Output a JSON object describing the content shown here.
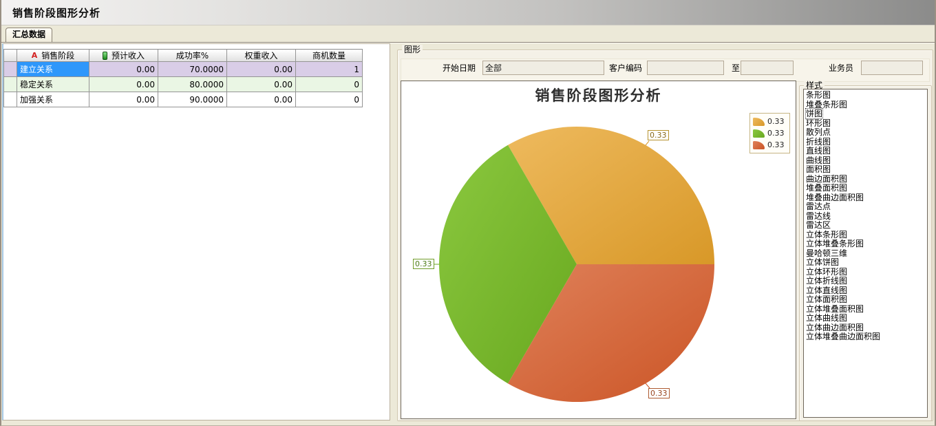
{
  "window": {
    "title": "销售阶段图形分析"
  },
  "tabs": [
    {
      "label": "汇总数据"
    }
  ],
  "table": {
    "columns": {
      "stage": "销售阶段",
      "expected": "预计收入",
      "rate": "成功率%",
      "weighted": "权重收入",
      "count": "商机数量"
    },
    "header_icons": {
      "stage_icon": "A",
      "expected_icon": "green-pill"
    },
    "rows": [
      {
        "stage": "建立关系",
        "expected": "0.00",
        "rate": "70.0000",
        "weighted": "0.00",
        "count": "1"
      },
      {
        "stage": "稳定关系",
        "expected": "0.00",
        "rate": "80.0000",
        "weighted": "0.00",
        "count": "0"
      },
      {
        "stage": "加强关系",
        "expected": "0.00",
        "rate": "90.0000",
        "weighted": "0.00",
        "count": "0"
      }
    ],
    "selection": {
      "row": 0,
      "column": "stage",
      "highlight_color": "#2e97fb",
      "row_color": "#d9cde7"
    }
  },
  "graph_panel": {
    "group_label": "图形",
    "filters": {
      "start_date_label": "开始日期",
      "start_date_value": "全部",
      "customer_code_label": "客户编码",
      "customer_code_value": "",
      "to_label": "至",
      "to_value": "",
      "salesman_label": "业务员",
      "salesman_value": ""
    }
  },
  "chart_data": {
    "type": "pie",
    "title": "销售阶段图形分析",
    "legend_position": "top-right",
    "slices": [
      {
        "label": "0.33",
        "value": 0.33,
        "color": "#e2a73f",
        "color_light": "#eeba5e",
        "color_dark": "#d89828"
      },
      {
        "label": "0.33",
        "value": 0.33,
        "color": "#7abc2e",
        "color_light": "#8bc83f",
        "color_dark": "#68a81f"
      },
      {
        "label": "0.33",
        "value": 0.33,
        "color": "#d5683c",
        "color_light": "#df815a",
        "color_dark": "#cb5425"
      }
    ]
  },
  "style_panel": {
    "group_label": "样式",
    "selected": "饼图",
    "items": [
      "条形图",
      "堆叠条形图",
      "饼图",
      "环形图",
      "散列点",
      "折线图",
      "直线图",
      "曲线图",
      "面积图",
      "曲边面积图",
      "堆叠面积图",
      "堆叠曲边面积图",
      "雷达点",
      "雷达线",
      "雷达区",
      "立体条形图",
      "立体堆叠条形图",
      "曼哈顿三维",
      "立体饼图",
      "立体环形图",
      "立体折线图",
      "立体直线图",
      "立体面积图",
      "立体堆叠面积图",
      "立体曲线图",
      "立体曲边面积图",
      "立体堆叠曲边面积图"
    ]
  }
}
